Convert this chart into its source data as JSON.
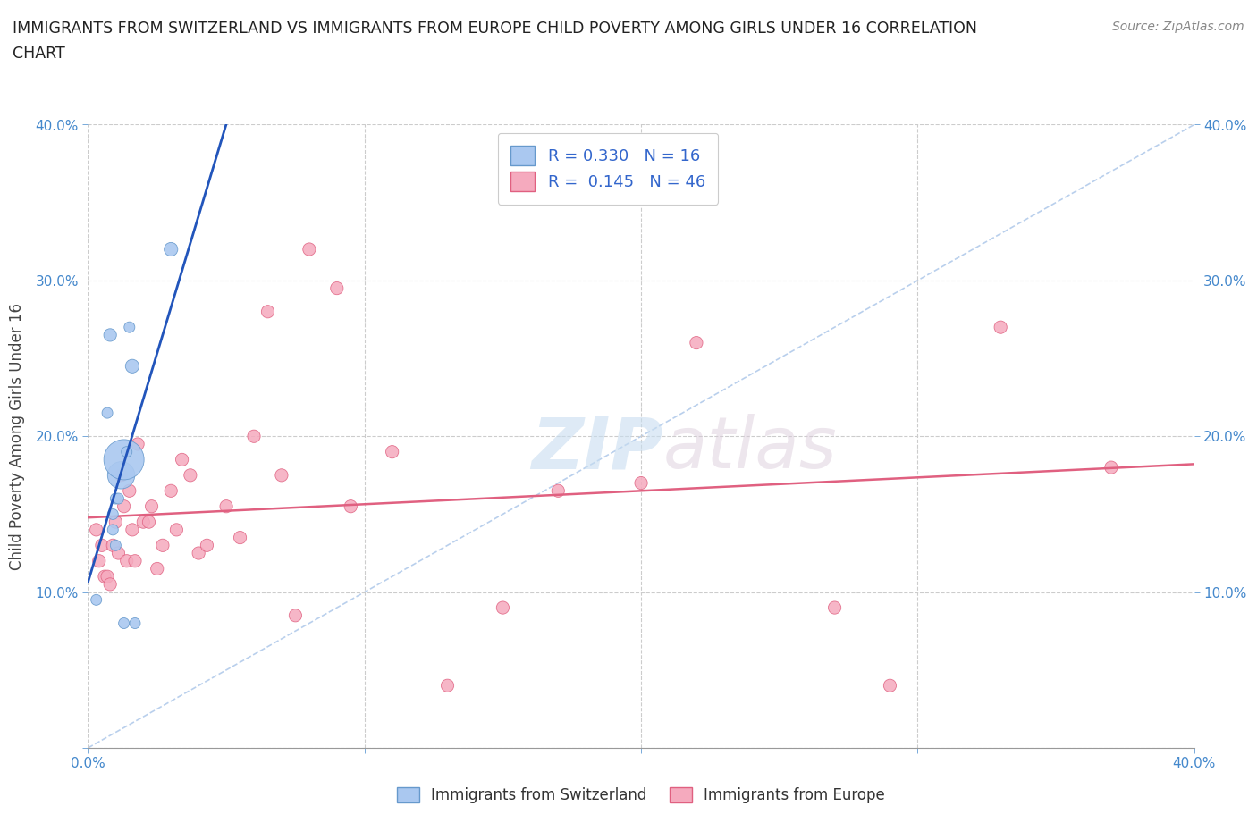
{
  "title": "IMMIGRANTS FROM SWITZERLAND VS IMMIGRANTS FROM EUROPE CHILD POVERTY AMONG GIRLS UNDER 16 CORRELATION\nCHART",
  "source": "Source: ZipAtlas.com",
  "ylabel": "Child Poverty Among Girls Under 16",
  "xlim": [
    0,
    0.4
  ],
  "ylim": [
    0,
    0.4
  ],
  "r_switzerland": 0.33,
  "n_switzerland": 16,
  "r_europe": 0.145,
  "n_europe": 46,
  "legend_label_swiss": "Immigrants from Switzerland",
  "legend_label_europe": "Immigrants from Europe",
  "swiss_color": "#aac8f0",
  "europe_color": "#f5aabe",
  "swiss_trend_color": "#2255bb",
  "europe_trend_color": "#e06080",
  "diag_color": "#a8c4e8",
  "watermark_zip": "ZIP",
  "watermark_atlas": "atlas",
  "swiss_x": [
    0.003,
    0.007,
    0.008,
    0.009,
    0.009,
    0.01,
    0.01,
    0.011,
    0.012,
    0.013,
    0.013,
    0.014,
    0.015,
    0.016,
    0.017,
    0.03
  ],
  "swiss_y": [
    0.095,
    0.215,
    0.265,
    0.14,
    0.15,
    0.16,
    0.13,
    0.16,
    0.175,
    0.185,
    0.08,
    0.19,
    0.27,
    0.245,
    0.08,
    0.32
  ],
  "swiss_size": [
    25,
    25,
    35,
    25,
    25,
    25,
    25,
    25,
    160,
    350,
    25,
    25,
    25,
    40,
    25,
    40
  ],
  "europe_x": [
    0.003,
    0.004,
    0.005,
    0.006,
    0.007,
    0.008,
    0.009,
    0.01,
    0.011,
    0.012,
    0.013,
    0.014,
    0.015,
    0.016,
    0.017,
    0.018,
    0.02,
    0.022,
    0.023,
    0.025,
    0.027,
    0.03,
    0.032,
    0.034,
    0.037,
    0.04,
    0.043,
    0.05,
    0.055,
    0.06,
    0.065,
    0.07,
    0.075,
    0.08,
    0.09,
    0.095,
    0.11,
    0.13,
    0.15,
    0.17,
    0.2,
    0.22,
    0.27,
    0.29,
    0.33,
    0.37
  ],
  "europe_y": [
    0.14,
    0.12,
    0.13,
    0.11,
    0.11,
    0.105,
    0.13,
    0.145,
    0.125,
    0.175,
    0.155,
    0.12,
    0.165,
    0.14,
    0.12,
    0.195,
    0.145,
    0.145,
    0.155,
    0.115,
    0.13,
    0.165,
    0.14,
    0.185,
    0.175,
    0.125,
    0.13,
    0.155,
    0.135,
    0.2,
    0.28,
    0.175,
    0.085,
    0.32,
    0.295,
    0.155,
    0.19,
    0.04,
    0.09,
    0.165,
    0.17,
    0.26,
    0.09,
    0.04,
    0.27,
    0.18
  ],
  "europe_size": [
    35,
    35,
    35,
    35,
    35,
    35,
    35,
    35,
    35,
    35,
    35,
    35,
    35,
    35,
    35,
    35,
    35,
    35,
    35,
    35,
    35,
    35,
    35,
    35,
    35,
    35,
    35,
    35,
    35,
    35,
    35,
    35,
    35,
    35,
    35,
    35,
    35,
    35,
    35,
    35,
    35,
    35,
    35,
    35,
    35,
    35
  ]
}
